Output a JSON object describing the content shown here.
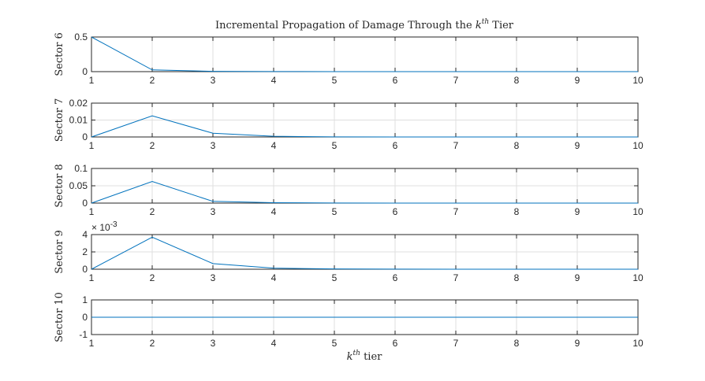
{
  "chart_data": {
    "type": "line",
    "title_main": "Incremental Propagation of Damage Through the ",
    "title_k": "k",
    "title_sup": "th",
    "title_end": " Tier",
    "xlabel_k": "k",
    "xlabel_sup": "th",
    "xlabel_end": " tier",
    "x": [
      1,
      2,
      3,
      4,
      5,
      6,
      7,
      8,
      9,
      10
    ],
    "xlim": [
      1,
      10
    ],
    "xticks": [
      1,
      2,
      3,
      4,
      5,
      6,
      7,
      8,
      9,
      10
    ],
    "grid": true,
    "series_color": "#0072bd",
    "subplots": [
      {
        "ylabel": "Sector 6",
        "ylim": [
          0,
          0.5
        ],
        "yticks": [
          0,
          0.5
        ],
        "ytick_labels": [
          "0",
          "0.5"
        ],
        "values": [
          0.5,
          0.025,
          0.004,
          0.001,
          0.0003,
          0.0001,
          3e-05,
          1e-05,
          3e-06,
          1e-06
        ]
      },
      {
        "ylabel": "Sector 7",
        "ylim": [
          0,
          0.02
        ],
        "yticks": [
          0,
          0.01,
          0.02
        ],
        "ytick_labels": [
          "0",
          "0.01",
          "0.02"
        ],
        "values": [
          0,
          0.0125,
          0.0022,
          0.0004,
          8e-05,
          2e-05,
          4e-06,
          1e-06,
          2e-07,
          5e-08
        ]
      },
      {
        "ylabel": "Sector 8",
        "ylim": [
          0,
          0.1
        ],
        "yticks": [
          0,
          0.05,
          0.1
        ],
        "ytick_labels": [
          "0",
          "0.05",
          "0.1"
        ],
        "values": [
          0,
          0.0625,
          0.005,
          0.0012,
          0.0003,
          7e-05,
          2e-05,
          5e-06,
          1e-06,
          3e-07
        ]
      },
      {
        "ylabel": "Sector 9",
        "ylim": [
          0,
          0.004
        ],
        "yticks": [
          0,
          0.002,
          0.004
        ],
        "ytick_labels": [
          "0",
          "2",
          "4"
        ],
        "exponent_base": "× 10",
        "exponent_power": "-3",
        "values": [
          0,
          0.0037,
          0.00065,
          0.00012,
          3e-05,
          7e-06,
          2e-06,
          5e-07,
          1e-07,
          3e-08
        ]
      },
      {
        "ylabel": "Sector 10",
        "ylim": [
          -1,
          1
        ],
        "yticks": [
          -1,
          0,
          1
        ],
        "ytick_labels": [
          "-1",
          "0",
          "1"
        ],
        "values": [
          0,
          0,
          0,
          0,
          0,
          0,
          0,
          0,
          0,
          0
        ]
      }
    ]
  }
}
